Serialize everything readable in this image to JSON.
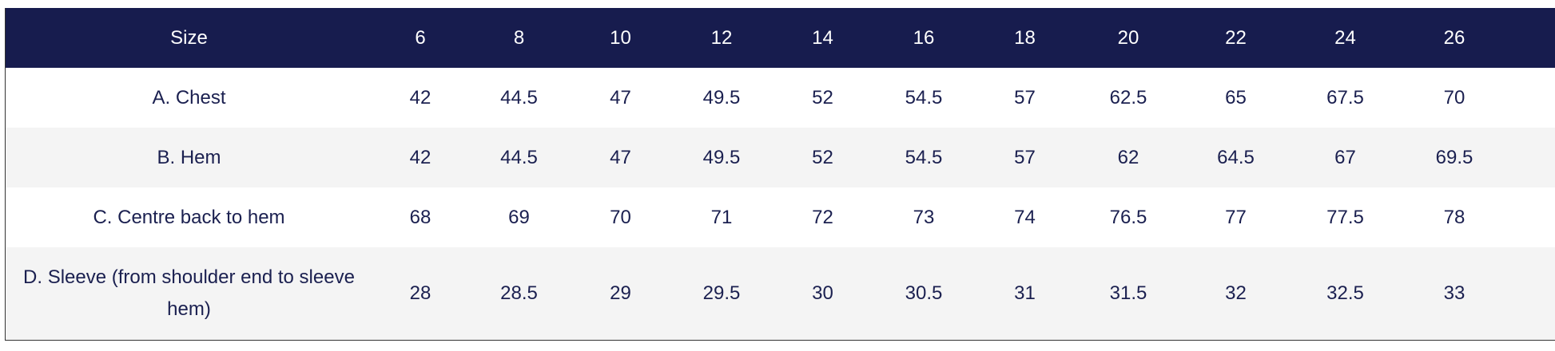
{
  "table": {
    "header": [
      "Size",
      "6",
      "8",
      "10",
      "12",
      "14",
      "16",
      "18",
      "20",
      "22",
      "24",
      "26"
    ],
    "rows": [
      [
        "A. Chest",
        42,
        44.5,
        47,
        49.5,
        52,
        54.5,
        57,
        62.5,
        65,
        67.5,
        70
      ],
      [
        "B. Hem",
        42,
        44.5,
        47,
        49.5,
        52,
        54.5,
        57,
        62,
        64.5,
        67,
        69.5
      ],
      [
        "C. Centre back to hem",
        68,
        69,
        70,
        71,
        72,
        73,
        74,
        76.5,
        77,
        77.5,
        78
      ],
      [
        "D. Sleeve (from shoulder end to sleeve hem)",
        28,
        28.5,
        29,
        29.5,
        30,
        30.5,
        31,
        31.5,
        32,
        32.5,
        33
      ]
    ]
  }
}
